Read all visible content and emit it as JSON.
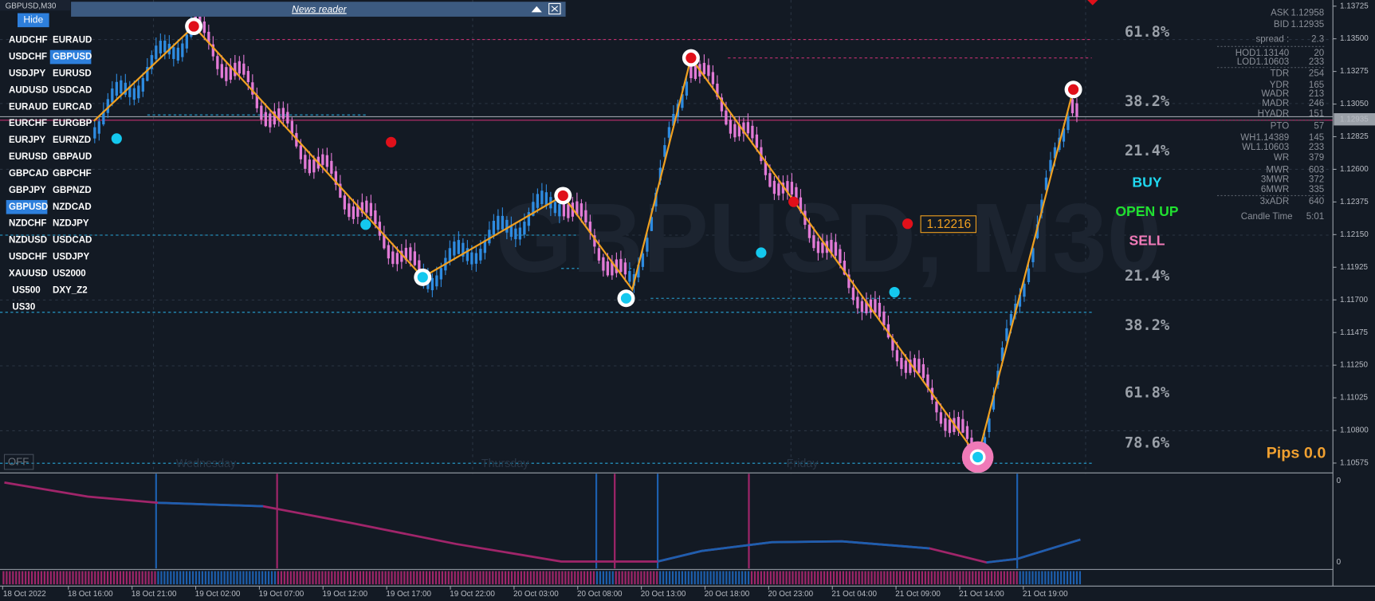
{
  "window": {
    "symbol": "GBPUSD,M30",
    "hide_button": "Hide",
    "news_reader": "News reader",
    "off_button": "OFF",
    "watermark": "GBPUSD, M30"
  },
  "symbols": [
    [
      "AUDCHF",
      "EURAUD"
    ],
    [
      "USDCHF",
      "GBPUSD"
    ],
    [
      "USDJPY",
      "EURUSD"
    ],
    [
      "AUDUSD",
      "USDCAD"
    ],
    [
      "EURAUD",
      "EURCAD"
    ],
    [
      "EURCHF",
      "EURGBP"
    ],
    [
      "EURJPY",
      "EURNZD"
    ],
    [
      "EURUSD",
      "GBPAUD"
    ],
    [
      "GBPCAD",
      "GBPCHF"
    ],
    [
      "GBPJPY",
      "GBPNZD"
    ],
    [
      "GBPUSD",
      "NZDCAD"
    ],
    [
      "NZDCHF",
      "NZDJPY"
    ],
    [
      "NZDUSD",
      "USDCAD"
    ],
    [
      "USDCHF",
      "USDJPY"
    ],
    [
      "XAUUSD",
      "US2000"
    ],
    [
      "US500",
      "DXY_Z2"
    ],
    [
      "US30"
    ]
  ],
  "price_axis": [
    "1.13725",
    "1.13500",
    "1.13275",
    "1.13050",
    "1.12825",
    "1.12600",
    "1.12375",
    "1.12150",
    "1.11925",
    "1.11700",
    "1.11475",
    "1.11250",
    "1.11025",
    "1.10800",
    "1.10575"
  ],
  "current_price": "1.12935",
  "time_axis": [
    "18 Oct 2022",
    "18 Oct 16:00",
    "18 Oct 21:00",
    "19 Oct 02:00",
    "19 Oct 07:00",
    "19 Oct 12:00",
    "19 Oct 17:00",
    "19 Oct 22:00",
    "20 Oct 03:00",
    "20 Oct 08:00",
    "20 Oct 13:00",
    "20 Oct 18:00",
    "20 Oct 23:00",
    "21 Oct 04:00",
    "21 Oct 09:00",
    "21 Oct 14:00",
    "21 Oct 19:00"
  ],
  "day_labels": [
    "Wednesday",
    "Thursday",
    "Friday"
  ],
  "fib_levels": [
    "61.8%",
    "38.2%",
    "21.4%",
    "21.4%",
    "38.2%",
    "61.8%",
    "78.6%"
  ],
  "signals": [
    "BUY",
    "OPEN UP",
    "SELL"
  ],
  "price_tag": "1.12216",
  "pips": "Pips 0.0",
  "info": [
    [
      "ASK",
      "1.12958"
    ],
    [
      "BID",
      "1.12935"
    ],
    [
      "spread :",
      "2.3"
    ],
    [
      "HOD1.13140",
      "20"
    ],
    [
      "LOD1.10603",
      "233"
    ],
    [
      "TDR",
      "254"
    ],
    [
      "YDR",
      "165"
    ],
    [
      "WADR",
      "213"
    ],
    [
      "MADR",
      "246"
    ],
    [
      "HYADR",
      "151"
    ],
    [
      "PTO",
      "57"
    ],
    [
      "WH1.14389",
      "145"
    ],
    [
      "WL1.10603",
      "233"
    ],
    [
      "WR",
      "379"
    ],
    [
      "MWR",
      "603"
    ],
    [
      "3MWR",
      "372"
    ],
    [
      "6MWR",
      "335"
    ],
    [
      "3xADR",
      "640"
    ],
    [
      "Candle Time",
      "5:01"
    ]
  ],
  "indicator_axis": [
    "0",
    "0"
  ]
}
